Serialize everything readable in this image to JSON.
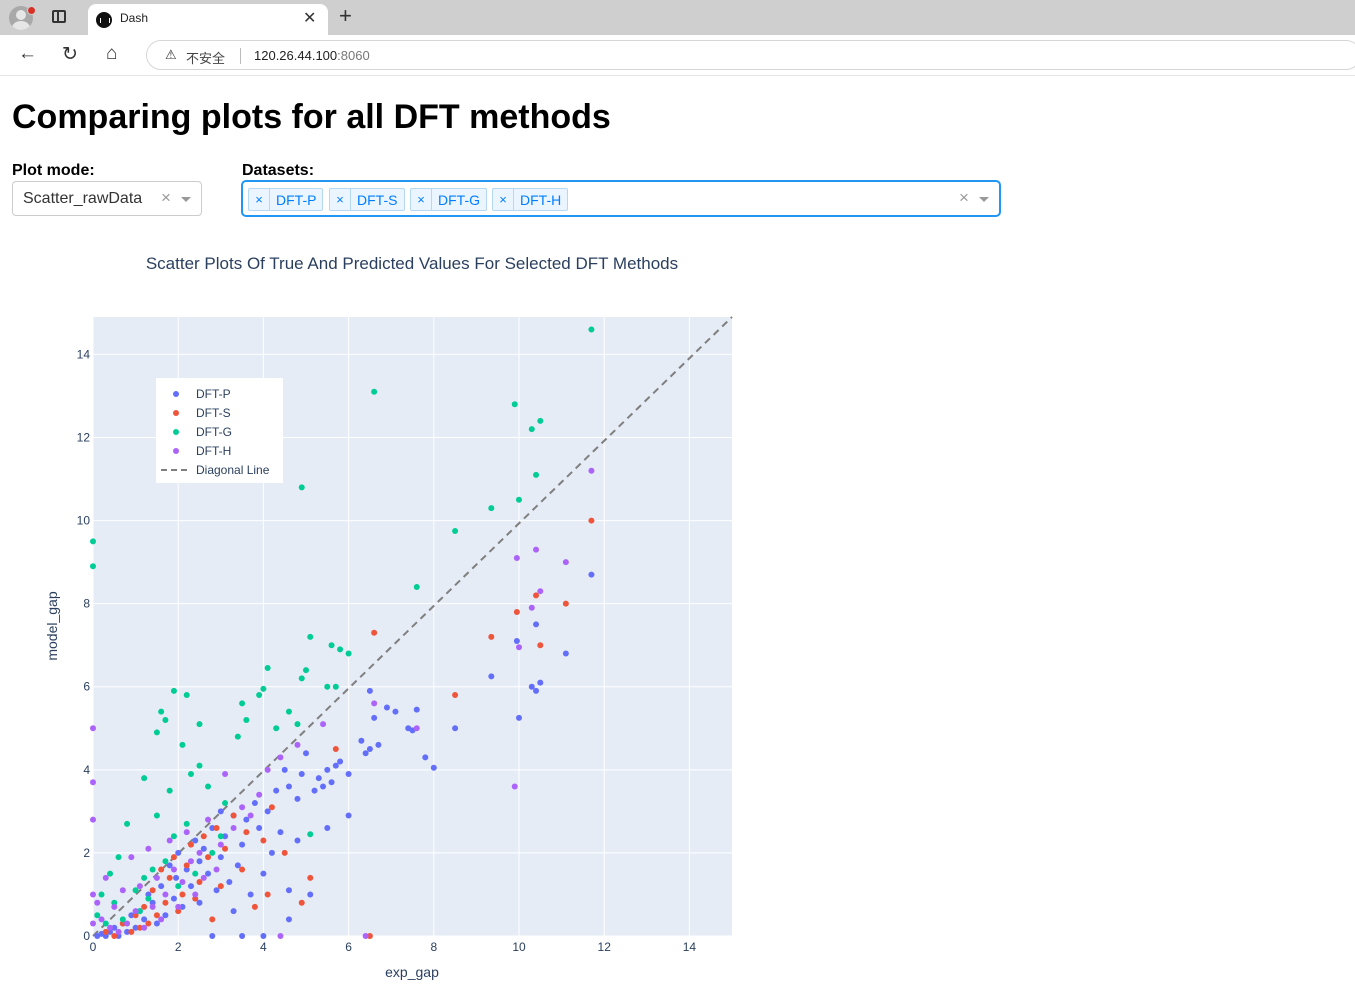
{
  "browser": {
    "tab_title": "Dash",
    "security_label": "不安全",
    "url_host": "120.26.44.100",
    "url_port": ":8060"
  },
  "page": {
    "title": "Comparing plots for all DFT methods",
    "plot_mode": {
      "label": "Plot mode:",
      "value": "Scatter_rawData"
    },
    "datasets": {
      "label": "Datasets:",
      "selected": [
        "DFT-P",
        "DFT-S",
        "DFT-G",
        "DFT-H"
      ]
    }
  },
  "chart_data": {
    "type": "scatter",
    "title": "Scatter Plots Of True And Predicted Values For Selected DFT Methods",
    "xlabel": "exp_gap",
    "ylabel": "model_gap",
    "xlim": [
      0,
      15
    ],
    "ylim": [
      0,
      14.9
    ],
    "xticks": [
      0,
      2,
      4,
      6,
      8,
      10,
      12,
      14
    ],
    "yticks": [
      0,
      2,
      4,
      6,
      8,
      10,
      12,
      14
    ],
    "grid": true,
    "legend_position": "top-left",
    "diagonal": {
      "name": "Diagonal Line",
      "color": "#7f7f7f",
      "dash": "dashed"
    },
    "series": [
      {
        "name": "DFT-P",
        "color": "#636efa",
        "points": [
          [
            11.7,
            8.7
          ],
          [
            11.1,
            6.8
          ],
          [
            10.5,
            6.1
          ],
          [
            10.4,
            7.5
          ],
          [
            10.4,
            5.9
          ],
          [
            10.3,
            6.0
          ],
          [
            10.0,
            5.25
          ],
          [
            9.95,
            7.1
          ],
          [
            9.35,
            6.25
          ],
          [
            8.5,
            5.0
          ],
          [
            8.0,
            4.05
          ],
          [
            7.8,
            4.3
          ],
          [
            7.6,
            5.45
          ],
          [
            7.5,
            4.95
          ],
          [
            7.4,
            5.0
          ],
          [
            7.1,
            5.4
          ],
          [
            6.9,
            5.5
          ],
          [
            6.7,
            4.6
          ],
          [
            6.6,
            5.25
          ],
          [
            6.5,
            5.9
          ],
          [
            6.5,
            4.5
          ],
          [
            6.4,
            4.4
          ],
          [
            6.3,
            4.7
          ],
          [
            6.0,
            3.9
          ],
          [
            6.0,
            2.9
          ],
          [
            5.8,
            4.2
          ],
          [
            5.7,
            4.1
          ],
          [
            5.6,
            3.7
          ],
          [
            5.5,
            4.0
          ],
          [
            5.4,
            3.6
          ],
          [
            5.3,
            3.8
          ],
          [
            5.2,
            3.5
          ],
          [
            5.0,
            4.4
          ],
          [
            4.9,
            3.9
          ],
          [
            4.8,
            3.3
          ],
          [
            4.6,
            3.6
          ],
          [
            4.5,
            4.0
          ],
          [
            4.4,
            2.5
          ],
          [
            4.3,
            3.5
          ],
          [
            4.2,
            2.0
          ],
          [
            4.1,
            3.0
          ],
          [
            4.0,
            1.5
          ],
          [
            3.9,
            2.6
          ],
          [
            3.8,
            3.2
          ],
          [
            3.7,
            1.0
          ],
          [
            3.6,
            2.8
          ],
          [
            3.5,
            2.2
          ],
          [
            3.4,
            1.7
          ],
          [
            3.3,
            2.9
          ],
          [
            3.2,
            1.3
          ],
          [
            3.1,
            2.4
          ],
          [
            3.0,
            3.0
          ],
          [
            3.0,
            1.9
          ],
          [
            2.9,
            1.1
          ],
          [
            2.8,
            2.6
          ],
          [
            2.7,
            1.5
          ],
          [
            2.6,
            2.1
          ],
          [
            2.5,
            0.8
          ],
          [
            2.5,
            1.8
          ],
          [
            2.4,
            2.3
          ],
          [
            2.3,
            1.2
          ],
          [
            2.2,
            1.6
          ],
          [
            2.1,
            0.7
          ],
          [
            2.0,
            2.0
          ],
          [
            1.95,
            1.4
          ],
          [
            1.9,
            0.9
          ],
          [
            1.8,
            1.7
          ],
          [
            1.7,
            0.5
          ],
          [
            1.6,
            1.2
          ],
          [
            1.5,
            0.3
          ],
          [
            1.4,
            0.8
          ],
          [
            1.3,
            1.0
          ],
          [
            1.2,
            0.4
          ],
          [
            1.1,
            0.6
          ],
          [
            1.0,
            0.2
          ],
          [
            0.9,
            0.5
          ],
          [
            0.8,
            0.1
          ],
          [
            0.7,
            0.3
          ],
          [
            0.6,
            0.0
          ],
          [
            0.5,
            0.2
          ],
          [
            0.4,
            0.1
          ],
          [
            0.3,
            0.0
          ],
          [
            0.2,
            0.05
          ],
          [
            0.1,
            0.0
          ],
          [
            3.5,
            0.0
          ],
          [
            4.0,
            0.0
          ],
          [
            2.8,
            0.0
          ],
          [
            4.6,
            1.1
          ],
          [
            4.6,
            0.4
          ],
          [
            5.1,
            1.0
          ],
          [
            3.3,
            0.6
          ],
          [
            4.8,
            2.3
          ],
          [
            5.5,
            2.6
          ]
        ]
      },
      {
        "name": "DFT-S",
        "color": "#ef553b",
        "points": [
          [
            11.7,
            10.0
          ],
          [
            11.1,
            8.0
          ],
          [
            10.5,
            7.0
          ],
          [
            10.4,
            8.2
          ],
          [
            9.95,
            7.8
          ],
          [
            9.35,
            7.2
          ],
          [
            8.5,
            5.8
          ],
          [
            6.6,
            7.3
          ],
          [
            5.7,
            4.5
          ],
          [
            5.1,
            1.4
          ],
          [
            4.9,
            0.8
          ],
          [
            4.5,
            2.0
          ],
          [
            4.2,
            3.1
          ],
          [
            4.1,
            1.0
          ],
          [
            4.0,
            2.3
          ],
          [
            3.8,
            0.7
          ],
          [
            3.6,
            2.5
          ],
          [
            3.5,
            1.6
          ],
          [
            3.3,
            2.9
          ],
          [
            3.1,
            2.1
          ],
          [
            3.0,
            1.2
          ],
          [
            2.9,
            2.6
          ],
          [
            2.8,
            0.4
          ],
          [
            2.7,
            1.9
          ],
          [
            2.6,
            2.4
          ],
          [
            2.5,
            1.3
          ],
          [
            2.4,
            0.9
          ],
          [
            2.3,
            2.2
          ],
          [
            2.2,
            1.7
          ],
          [
            2.1,
            1.0
          ],
          [
            2.0,
            0.6
          ],
          [
            1.9,
            1.9
          ],
          [
            1.8,
            1.4
          ],
          [
            1.7,
            0.8
          ],
          [
            1.6,
            1.6
          ],
          [
            1.5,
            0.5
          ],
          [
            1.4,
            1.1
          ],
          [
            1.3,
            0.3
          ],
          [
            1.2,
            0.7
          ],
          [
            1.1,
            0.2
          ],
          [
            1.0,
            0.5
          ],
          [
            0.9,
            0.1
          ],
          [
            0.7,
            0.3
          ],
          [
            0.5,
            0.0
          ],
          [
            0.3,
            0.1
          ],
          [
            6.5,
            0.0
          ]
        ]
      },
      {
        "name": "DFT-G",
        "color": "#00cc96",
        "points": [
          [
            11.7,
            14.6
          ],
          [
            10.5,
            12.4
          ],
          [
            10.4,
            11.1
          ],
          [
            10.3,
            12.2
          ],
          [
            9.9,
            12.8
          ],
          [
            10.0,
            10.5
          ],
          [
            9.35,
            10.3
          ],
          [
            8.5,
            9.75
          ],
          [
            7.6,
            8.4
          ],
          [
            6.6,
            13.1
          ],
          [
            4.9,
            10.8
          ],
          [
            6.0,
            6.8
          ],
          [
            5.8,
            6.9
          ],
          [
            5.6,
            7.0
          ],
          [
            5.7,
            6.0
          ],
          [
            5.5,
            6.0
          ],
          [
            5.1,
            7.2
          ],
          [
            5.0,
            6.4
          ],
          [
            4.9,
            6.2
          ],
          [
            4.8,
            5.1
          ],
          [
            4.1,
            6.45
          ],
          [
            4.0,
            5.95
          ],
          [
            3.9,
            5.8
          ],
          [
            3.6,
            5.2
          ],
          [
            3.5,
            5.6
          ],
          [
            3.4,
            4.8
          ],
          [
            2.5,
            5.1
          ],
          [
            2.2,
            5.8
          ],
          [
            2.1,
            4.6
          ],
          [
            1.9,
            5.9
          ],
          [
            1.7,
            5.2
          ],
          [
            1.6,
            5.4
          ],
          [
            1.5,
            4.9
          ],
          [
            2.5,
            4.1
          ],
          [
            2.7,
            3.6
          ],
          [
            2.3,
            3.9
          ],
          [
            1.8,
            3.5
          ],
          [
            1.2,
            3.8
          ],
          [
            3.1,
            3.2
          ],
          [
            3.0,
            2.4
          ],
          [
            2.8,
            2.0
          ],
          [
            2.4,
            1.5
          ],
          [
            2.2,
            2.7
          ],
          [
            2.0,
            1.2
          ],
          [
            1.9,
            2.4
          ],
          [
            1.7,
            1.8
          ],
          [
            1.5,
            2.9
          ],
          [
            1.4,
            1.6
          ],
          [
            1.3,
            0.9
          ],
          [
            1.2,
            1.4
          ],
          [
            1.1,
            0.6
          ],
          [
            1.0,
            1.1
          ],
          [
            0.8,
            2.7
          ],
          [
            0.7,
            0.4
          ],
          [
            0.6,
            1.9
          ],
          [
            0.5,
            0.8
          ],
          [
            0.4,
            1.5
          ],
          [
            0.3,
            0.3
          ],
          [
            0.2,
            1.0
          ],
          [
            0.1,
            0.5
          ],
          [
            0.0,
            9.5
          ],
          [
            0.0,
            8.9
          ],
          [
            5.1,
            2.45
          ],
          [
            4.3,
            5.0
          ],
          [
            4.6,
            5.4
          ]
        ]
      },
      {
        "name": "DFT-H",
        "color": "#ab63fa",
        "points": [
          [
            11.7,
            11.2
          ],
          [
            11.1,
            9.0
          ],
          [
            10.5,
            8.3
          ],
          [
            10.4,
            9.3
          ],
          [
            10.3,
            7.9
          ],
          [
            10.0,
            6.95
          ],
          [
            9.95,
            9.1
          ],
          [
            9.9,
            3.6
          ],
          [
            7.6,
            5.0
          ],
          [
            6.6,
            5.6
          ],
          [
            5.4,
            5.1
          ],
          [
            4.8,
            4.6
          ],
          [
            4.4,
            4.3
          ],
          [
            4.1,
            4.0
          ],
          [
            3.9,
            3.4
          ],
          [
            3.7,
            2.9
          ],
          [
            3.5,
            3.1
          ],
          [
            3.3,
            2.6
          ],
          [
            3.1,
            3.9
          ],
          [
            3.0,
            2.2
          ],
          [
            2.9,
            1.6
          ],
          [
            2.7,
            2.8
          ],
          [
            2.6,
            1.4
          ],
          [
            2.5,
            2.0
          ],
          [
            2.4,
            1.0
          ],
          [
            2.3,
            1.8
          ],
          [
            2.2,
            2.5
          ],
          [
            2.1,
            1.3
          ],
          [
            2.0,
            0.7
          ],
          [
            1.9,
            1.6
          ],
          [
            1.8,
            2.3
          ],
          [
            1.7,
            1.0
          ],
          [
            1.6,
            0.4
          ],
          [
            1.5,
            1.4
          ],
          [
            1.4,
            0.7
          ],
          [
            1.3,
            2.1
          ],
          [
            1.2,
            0.2
          ],
          [
            1.1,
            1.2
          ],
          [
            1.0,
            0.6
          ],
          [
            0.9,
            1.9
          ],
          [
            0.8,
            0.3
          ],
          [
            0.7,
            1.1
          ],
          [
            0.6,
            0.1
          ],
          [
            0.5,
            0.7
          ],
          [
            0.4,
            0.2
          ],
          [
            0.3,
            1.4
          ],
          [
            0.2,
            0.4
          ],
          [
            0.1,
            0.8
          ],
          [
            0.0,
            5.0
          ],
          [
            0.0,
            3.7
          ],
          [
            0.0,
            2.8
          ],
          [
            0.0,
            1.0
          ],
          [
            0.0,
            0.3
          ],
          [
            6.4,
            0.0
          ],
          [
            4.4,
            0.0
          ]
        ]
      }
    ]
  }
}
